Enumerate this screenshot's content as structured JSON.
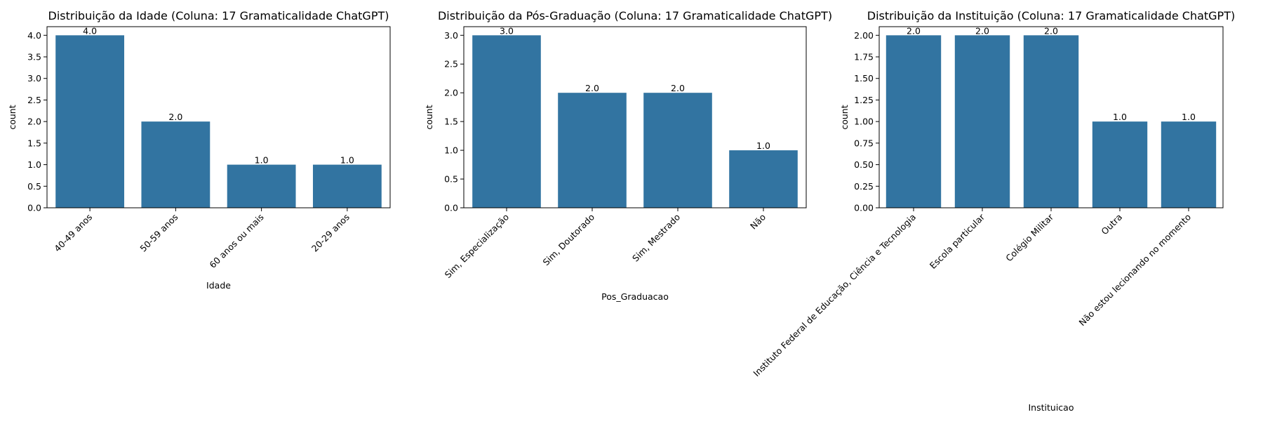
{
  "chart_data": [
    {
      "type": "bar",
      "title": "Distribuição da Idade (Coluna: 17 Gramaticalidade ChatGPT)",
      "xlabel": "Idade",
      "ylabel": "count",
      "categories": [
        "40-49 anos",
        "50-59 anos",
        "60 anos ou mais",
        "20-29 anos"
      ],
      "values": [
        4,
        2,
        1,
        1
      ],
      "data_labels": [
        "4.0",
        "2.0",
        "1.0",
        "1.0"
      ],
      "ylim": [
        0,
        4.2
      ],
      "yticks": [
        "0.0",
        "0.5",
        "1.0",
        "1.5",
        "2.0",
        "2.5",
        "3.0",
        "3.5",
        "4.0"
      ],
      "bar_color": "#3274a1",
      "grid": false
    },
    {
      "type": "bar",
      "title": "Distribuição da Pós-Graduação (Coluna: 17 Gramaticalidade ChatGPT)",
      "xlabel": "Pos_Graduacao",
      "ylabel": "count",
      "categories": [
        "Sim, Especialização",
        "Sim, Doutorado",
        "Sim, Mestrado",
        "Não"
      ],
      "values": [
        3,
        2,
        2,
        1
      ],
      "data_labels": [
        "3.0",
        "2.0",
        "2.0",
        "1.0"
      ],
      "ylim": [
        0,
        3.15
      ],
      "yticks": [
        "0.0",
        "0.5",
        "1.0",
        "1.5",
        "2.0",
        "2.5",
        "3.0"
      ],
      "bar_color": "#3274a1",
      "grid": false
    },
    {
      "type": "bar",
      "title": "Distribuição da Instituição (Coluna: 17 Gramaticalidade ChatGPT)",
      "xlabel": "Instituicao",
      "ylabel": "count",
      "categories": [
        "Instituto Federal de Educação, Ciência e Tecnologia",
        "Escola particular",
        "Colégio Militar",
        "Outra",
        "Não estou lecionando no momento"
      ],
      "values": [
        2,
        2,
        2,
        1,
        1
      ],
      "data_labels": [
        "2.0",
        "2.0",
        "2.0",
        "1.0",
        "1.0"
      ],
      "ylim": [
        0,
        2.1
      ],
      "yticks": [
        "0.00",
        "0.25",
        "0.50",
        "0.75",
        "1.00",
        "1.25",
        "1.50",
        "1.75",
        "2.00"
      ],
      "bar_color": "#3274a1",
      "grid": false
    }
  ]
}
